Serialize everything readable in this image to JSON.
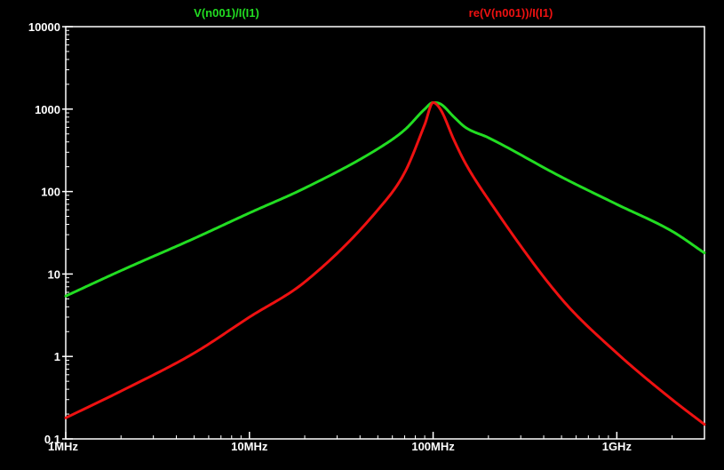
{
  "chart_data": {
    "type": "line",
    "title": "",
    "xlabel": "",
    "ylabel": "",
    "x_scale": "log",
    "y_scale": "log",
    "xlim": [
      1000000,
      3000000000
    ],
    "ylim": [
      0.1,
      10000
    ],
    "grid": false,
    "background_color": "#000000",
    "axis_color": "#ffffff",
    "legend_placement": "top",
    "x_ticks": [
      {
        "value": 1000000,
        "label": "1MHz"
      },
      {
        "value": 10000000,
        "label": "10MHz"
      },
      {
        "value": 100000000,
        "label": "100MHz"
      },
      {
        "value": 1000000000,
        "label": "1GHz"
      }
    ],
    "y_ticks": [
      {
        "value": 0.1,
        "label": "0.1"
      },
      {
        "value": 1,
        "label": "1"
      },
      {
        "value": 10,
        "label": "10"
      },
      {
        "value": 100,
        "label": "100"
      },
      {
        "value": 1000,
        "label": "1000"
      },
      {
        "value": 10000,
        "label": "10000"
      }
    ],
    "series": [
      {
        "name": "V(n001)/I(I1)",
        "color": "#22dd22",
        "x": [
          1000000,
          2000000,
          5000000,
          10000000,
          20000000,
          50000000,
          70000000,
          90000000,
          100000000,
          110000000,
          130000000,
          150000000,
          200000000,
          500000000,
          1000000000,
          2000000000,
          3000000000
        ],
        "y": [
          5.4,
          11,
          27,
          55,
          110,
          330,
          560,
          1000,
          1200,
          1150,
          800,
          600,
          450,
          150,
          70,
          33,
          18
        ]
      },
      {
        "name": "re(V(n001))/I(I1)",
        "color": "#ee1111",
        "x": [
          1000000,
          2000000,
          5000000,
          10000000,
          20000000,
          50000000,
          70000000,
          90000000,
          100000000,
          110000000,
          130000000,
          150000000,
          200000000,
          500000000,
          1000000000,
          2000000000,
          3000000000
        ],
        "y": [
          0.18,
          0.38,
          1.1,
          3,
          8,
          60,
          170,
          650,
          1200,
          980,
          420,
          220,
          80,
          5,
          1.1,
          0.3,
          0.15
        ]
      }
    ]
  }
}
